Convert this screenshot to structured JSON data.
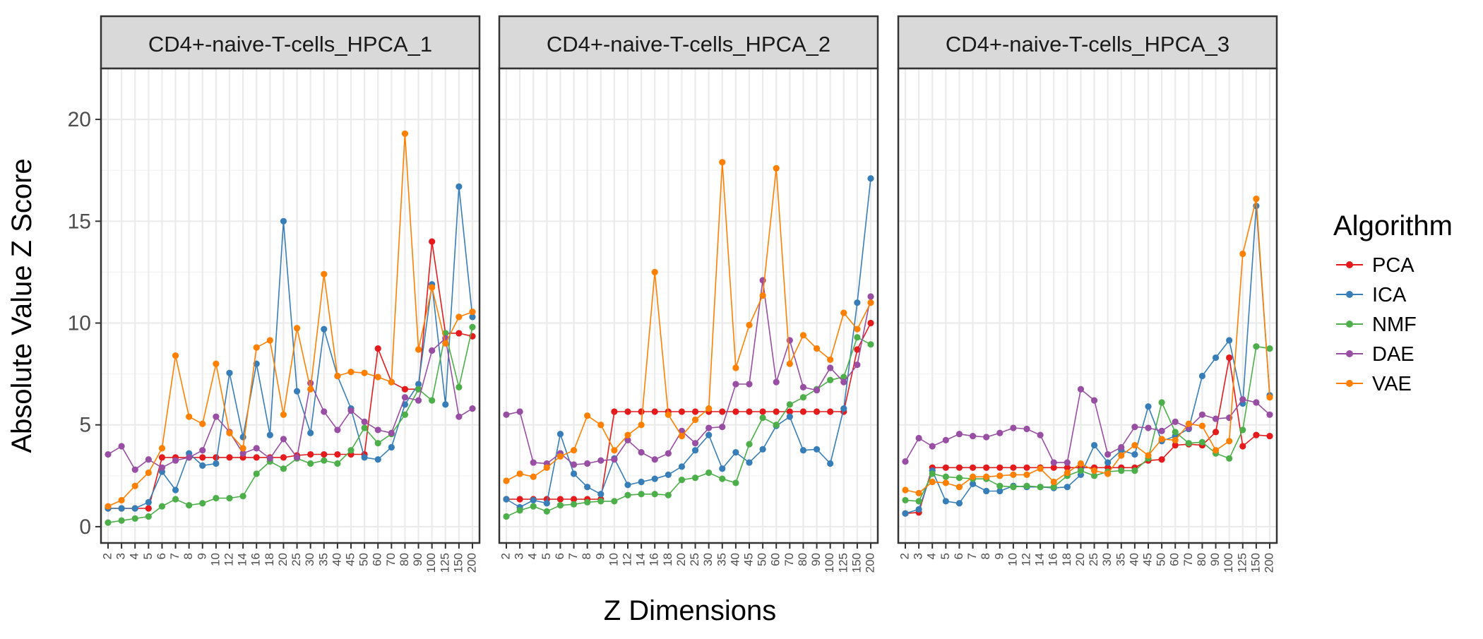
{
  "chart_data": {
    "type": "line",
    "xlabel": "Z Dimensions",
    "ylabel": "Absolute Value Z Score",
    "ylim": [
      -0.8,
      22.5
    ],
    "y_ticks": [
      0,
      5,
      10,
      15,
      20
    ],
    "y_tick_labels": [
      "0",
      "5",
      "10",
      "15",
      "20"
    ],
    "grid": true,
    "legend_position": "right",
    "legend_title": "Algorithm",
    "categories": [
      "2",
      "3",
      "4",
      "5",
      "6",
      "7",
      "8",
      "9",
      "10",
      "12",
      "14",
      "16",
      "18",
      "20",
      "25",
      "30",
      "35",
      "40",
      "45",
      "50",
      "60",
      "70",
      "80",
      "90",
      "100",
      "125",
      "150",
      "200"
    ],
    "series_meta": [
      {
        "name": "PCA",
        "color": "#e41a1c"
      },
      {
        "name": "ICA",
        "color": "#377eb8"
      },
      {
        "name": "NMF",
        "color": "#4daf4a"
      },
      {
        "name": "DAE",
        "color": "#984ea3"
      },
      {
        "name": "VAE",
        "color": "#ff7f00"
      }
    ],
    "panels": [
      {
        "title": "CD4+-naive-T-cells_HPCA_1",
        "series": [
          {
            "name": "PCA",
            "values": [
              0.9,
              0.9,
              0.9,
              0.9,
              3.4,
              3.4,
              3.4,
              3.4,
              3.4,
              3.4,
              3.4,
              3.4,
              3.4,
              3.4,
              3.5,
              3.55,
              3.55,
              3.55,
              3.55,
              3.55,
              8.75,
              7.1,
              6.75,
              6.75,
              14.0,
              9.5,
              9.5,
              9.35
            ]
          },
          {
            "name": "ICA",
            "values": [
              0.9,
              0.9,
              0.9,
              1.2,
              2.7,
              1.8,
              3.6,
              3.0,
              3.1,
              7.55,
              4.4,
              8.0,
              4.5,
              15.0,
              6.65,
              4.6,
              9.7,
              7.4,
              5.8,
              3.4,
              3.3,
              3.9,
              6.0,
              7.0,
              11.9,
              6.0,
              16.7,
              10.3
            ]
          },
          {
            "name": "NMF",
            "values": [
              0.2,
              0.3,
              0.4,
              0.5,
              1.0,
              1.35,
              1.05,
              1.15,
              1.4,
              1.4,
              1.5,
              2.6,
              3.2,
              2.85,
              3.35,
              3.1,
              3.25,
              3.1,
              3.75,
              4.85,
              4.1,
              4.55,
              5.5,
              6.75,
              6.2,
              9.5,
              6.85,
              9.8
            ]
          },
          {
            "name": "DAE",
            "values": [
              3.55,
              3.95,
              2.8,
              3.3,
              2.9,
              3.25,
              3.4,
              3.75,
              5.4,
              4.65,
              3.6,
              3.85,
              3.35,
              4.3,
              3.4,
              7.05,
              5.65,
              4.75,
              5.7,
              5.15,
              4.75,
              4.6,
              6.35,
              6.2,
              8.65,
              9.25,
              5.4,
              5.8
            ]
          },
          {
            "name": "VAE",
            "values": [
              1.0,
              1.3,
              2.0,
              2.65,
              3.85,
              8.4,
              5.4,
              5.05,
              8.0,
              4.6,
              3.85,
              8.8,
              9.15,
              5.5,
              9.75,
              6.75,
              12.4,
              7.4,
              7.6,
              7.55,
              7.35,
              7.1,
              19.3,
              8.7,
              11.75,
              9.0,
              10.3,
              10.55
            ]
          }
        ]
      },
      {
        "title": "CD4+-naive-T-cells_HPCA_2",
        "series": [
          {
            "name": "PCA",
            "values": [
              1.35,
              1.35,
              1.35,
              1.35,
              1.35,
              1.35,
              1.35,
              1.35,
              5.65,
              5.65,
              5.65,
              5.65,
              5.65,
              5.65,
              5.65,
              5.65,
              5.65,
              5.65,
              5.65,
              5.65,
              5.65,
              5.65,
              5.65,
              5.65,
              5.65,
              5.65,
              8.7,
              10.0
            ]
          },
          {
            "name": "ICA",
            "values": [
              1.35,
              0.95,
              1.3,
              1.15,
              4.55,
              2.6,
              1.95,
              1.6,
              3.35,
              2.05,
              2.2,
              2.35,
              2.55,
              2.95,
              3.75,
              4.5,
              2.85,
              3.65,
              3.15,
              3.8,
              4.95,
              5.4,
              3.75,
              3.8,
              3.1,
              5.8,
              11.0,
              17.1
            ]
          },
          {
            "name": "NMF",
            "values": [
              0.5,
              0.8,
              1.0,
              0.75,
              1.05,
              1.1,
              1.2,
              1.25,
              1.25,
              1.55,
              1.6,
              1.6,
              1.55,
              2.3,
              2.4,
              2.65,
              2.35,
              2.15,
              4.05,
              5.35,
              5.0,
              6.0,
              6.35,
              6.75,
              7.2,
              7.35,
              9.3,
              8.95
            ]
          },
          {
            "name": "DAE",
            "values": [
              5.5,
              5.65,
              3.15,
              3.1,
              3.6,
              3.05,
              3.1,
              3.25,
              3.3,
              4.25,
              3.65,
              3.3,
              3.6,
              4.7,
              4.1,
              4.85,
              4.9,
              7.0,
              7.0,
              12.1,
              7.1,
              9.15,
              6.85,
              6.7,
              7.8,
              7.1,
              7.95,
              11.3
            ]
          },
          {
            "name": "VAE",
            "values": [
              2.25,
              2.6,
              2.45,
              2.9,
              3.45,
              3.75,
              5.45,
              5.0,
              3.75,
              4.5,
              5.0,
              12.5,
              5.5,
              4.45,
              5.25,
              5.8,
              17.9,
              7.8,
              9.9,
              11.35,
              17.6,
              8.0,
              9.4,
              8.75,
              8.2,
              10.5,
              9.7,
              11.0
            ]
          }
        ]
      },
      {
        "title": "CD4+-naive-T-cells_HPCA_3",
        "series": [
          {
            "name": "PCA",
            "values": [
              0.65,
              0.7,
              2.9,
              2.9,
              2.9,
              2.9,
              2.9,
              2.9,
              2.9,
              2.9,
              2.9,
              2.9,
              2.9,
              2.9,
              2.9,
              2.9,
              2.9,
              2.9,
              3.25,
              3.3,
              4.0,
              4.05,
              4.0,
              4.65,
              8.3,
              3.95,
              4.5,
              4.45
            ]
          },
          {
            "name": "ICA",
            "values": [
              0.65,
              0.85,
              2.75,
              1.25,
              1.15,
              2.1,
              1.75,
              1.75,
              2.0,
              1.95,
              1.95,
              1.9,
              1.95,
              2.55,
              4.0,
              3.15,
              3.75,
              3.55,
              5.9,
              4.2,
              4.45,
              4.8,
              7.4,
              8.3,
              9.15,
              6.05,
              15.75,
              6.45
            ]
          },
          {
            "name": "NMF",
            "values": [
              1.3,
              1.25,
              2.6,
              2.45,
              2.4,
              2.35,
              2.35,
              2.0,
              1.95,
              2.0,
              1.95,
              1.95,
              2.5,
              2.75,
              2.5,
              2.7,
              2.75,
              2.75,
              3.35,
              6.1,
              4.65,
              4.1,
              4.15,
              3.6,
              3.35,
              4.75,
              8.85,
              8.75
            ]
          },
          {
            "name": "DAE",
            "values": [
              3.2,
              4.35,
              3.95,
              4.25,
              4.55,
              4.45,
              4.4,
              4.6,
              4.85,
              4.8,
              4.5,
              3.15,
              3.15,
              6.75,
              6.2,
              3.55,
              3.9,
              4.9,
              4.85,
              4.7,
              5.15,
              4.85,
              5.5,
              5.3,
              5.35,
              6.25,
              6.1,
              5.5
            ]
          },
          {
            "name": "VAE",
            "values": [
              1.8,
              1.65,
              2.2,
              2.15,
              1.95,
              2.45,
              2.45,
              2.5,
              2.55,
              2.55,
              2.85,
              2.2,
              2.65,
              3.1,
              2.75,
              2.6,
              3.5,
              4.0,
              3.5,
              4.3,
              4.25,
              5.05,
              4.95,
              3.75,
              4.2,
              13.4,
              16.1,
              6.35
            ]
          }
        ]
      }
    ]
  }
}
